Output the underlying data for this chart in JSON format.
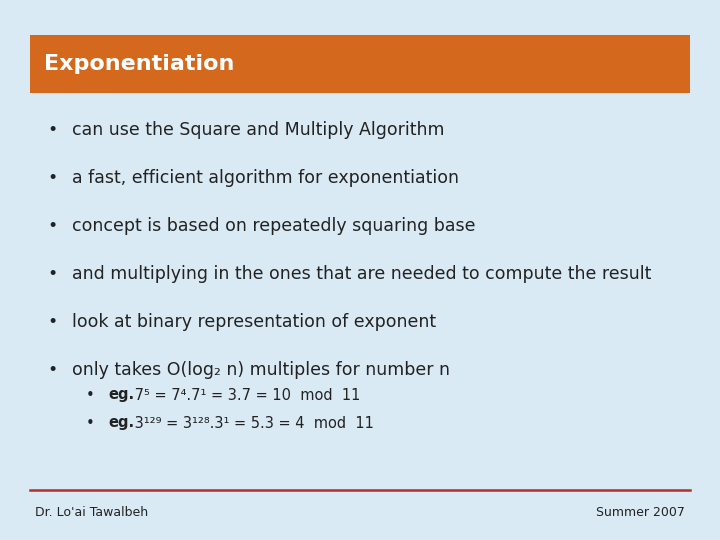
{
  "title": "Exponentiation",
  "title_bg_color": "#D4691E",
  "title_text_color": "#FFFFFF",
  "slide_bg_color": "#DAEAF5",
  "bullet_color": "#222222",
  "bullet_points": [
    "can use the Square and Multiply Algorithm",
    "a fast, efficient algorithm for exponentiation",
    "concept is based on repeatedly squaring base",
    "and multiplying in the ones that are needed to compute the result",
    "look at binary representation of exponent",
    "only takes O(log₂ n) multiples for number n"
  ],
  "footer_left": "Dr. Lo'ai Tawalbeh",
  "footer_right": "Summer 2007",
  "footer_line_color": "#B03030",
  "title_fontsize": 16,
  "bullet_fontsize": 12.5,
  "sub_bullet_fontsize": 10.5,
  "footer_fontsize": 9
}
